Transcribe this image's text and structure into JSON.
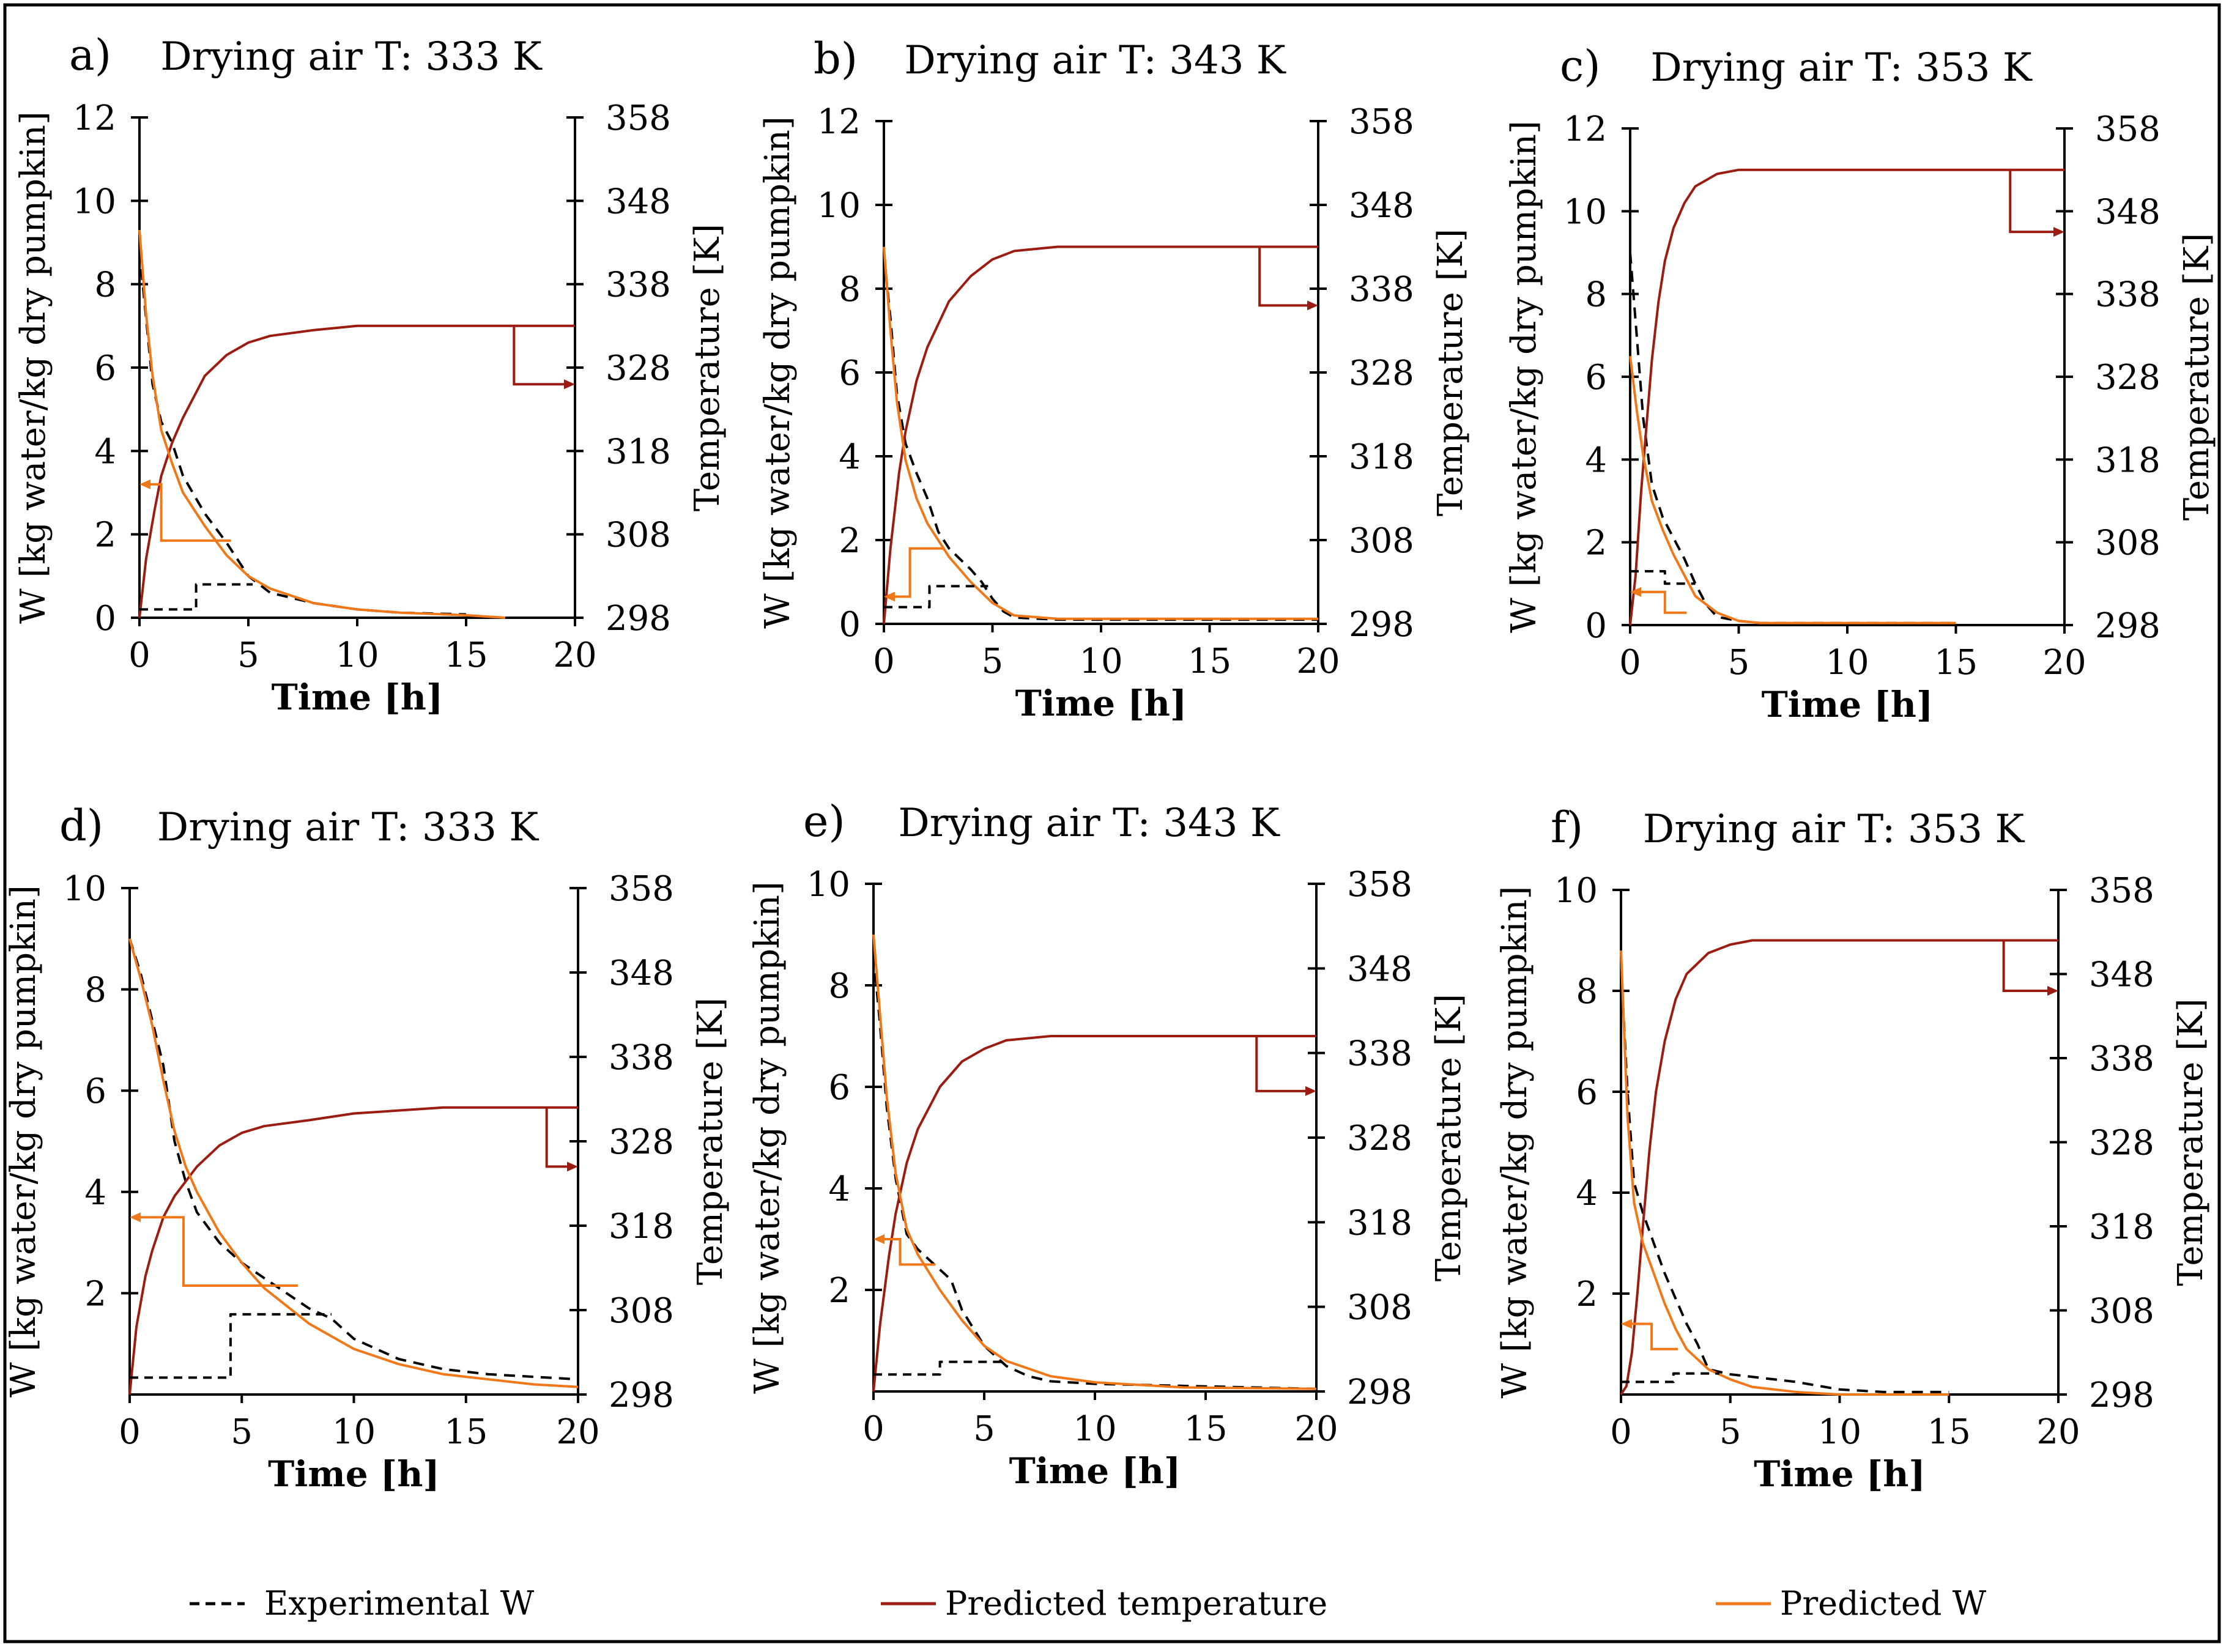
{
  "colors": {
    "experimental": "#000000",
    "pred_temperature": "#9b1c10",
    "pred_w": "#f07818",
    "frame": "#000000"
  },
  "legend": {
    "experimental": "Experimental W",
    "pred_temperature": "Predicted temperature",
    "pred_w": "Predicted W"
  },
  "chart_data": [
    {
      "type": "line",
      "panel": "a)",
      "title": "Drying air T: 333 K",
      "xlabel": "Time [h]",
      "ylabel": "W [kg water/kg dry pumpkin]",
      "y2label": "Temperature [K]",
      "xlim": [
        0,
        20
      ],
      "ylim": [
        0,
        12
      ],
      "y2lim": [
        298,
        358
      ],
      "xticks": [
        0,
        5,
        10,
        15,
        20
      ],
      "yticks": [
        0,
        2,
        4,
        6,
        8,
        10,
        12
      ],
      "y2ticks": [
        298,
        308,
        318,
        328,
        338,
        348,
        358
      ],
      "series": [
        {
          "name": "Experimental W",
          "axis": "left",
          "x": [
            0,
            0.3,
            0.6,
            1,
            1.5,
            2,
            3,
            4,
            5,
            6,
            8,
            10,
            12,
            15
          ],
          "y": [
            8.8,
            7.2,
            5.6,
            4.7,
            4.2,
            3.4,
            2.5,
            1.8,
            1.0,
            0.6,
            0.35,
            0.2,
            0.12,
            0.08
          ]
        },
        {
          "name": "Predicted temperature",
          "axis": "right",
          "x": [
            0,
            0.3,
            0.7,
            1,
            1.5,
            2,
            3,
            4,
            5,
            6,
            8,
            10,
            13,
            16,
            20
          ],
          "y": [
            298,
            305,
            311,
            315,
            319,
            322,
            327,
            329.5,
            331,
            331.8,
            332.5,
            333,
            333,
            333,
            333
          ]
        },
        {
          "name": "Predicted W",
          "axis": "left",
          "x": [
            0,
            0.3,
            0.6,
            1,
            1.5,
            2,
            3,
            4,
            5,
            6,
            8,
            10,
            12,
            15,
            16.8
          ],
          "y": [
            9.3,
            7.3,
            5.8,
            4.5,
            3.7,
            3.0,
            2.2,
            1.5,
            1.0,
            0.7,
            0.35,
            0.2,
            0.12,
            0.06,
            0.0
          ]
        },
        {
          "name": "Experimental step",
          "axis": "right",
          "x": [
            0,
            2.6,
            2.6,
            5.2
          ],
          "y": [
            299,
            299,
            302,
            302
          ]
        }
      ],
      "markers": {
        "temp_x": 17.2,
        "temp_top": 333,
        "temp_bottom": 326,
        "temp_arrow_end": 20,
        "w_x": 1.0,
        "w_top": 3.2,
        "w_bottom": 1.85,
        "w_line_end": 4.2,
        "w_arrow_end": 0.0
      }
    },
    {
      "type": "line",
      "panel": "b)",
      "title": "Drying air T: 343 K",
      "xlabel": "Time [h]",
      "ylabel": "W [kg water/kg dry pumpkin]",
      "y2label": "Temperature [K]",
      "xlim": [
        0,
        20
      ],
      "ylim": [
        0,
        12
      ],
      "y2lim": [
        298,
        358
      ],
      "xticks": [
        0,
        5,
        10,
        15,
        20
      ],
      "yticks": [
        0,
        2,
        4,
        6,
        8,
        10,
        12
      ],
      "y2ticks": [
        298,
        308,
        318,
        328,
        338,
        348,
        358
      ],
      "series": [
        {
          "name": "Experimental W",
          "axis": "left",
          "x": [
            0,
            0.3,
            0.6,
            1,
            1.5,
            2,
            2.5,
            3,
            4,
            4.5,
            5,
            5.5,
            6,
            8,
            10,
            20
          ],
          "y": [
            8.8,
            7.3,
            5.5,
            4.3,
            3.6,
            3.0,
            2.2,
            1.8,
            1.3,
            1.0,
            0.6,
            0.3,
            0.15,
            0.1,
            0.1,
            0.1
          ]
        },
        {
          "name": "Predicted temperature",
          "axis": "right",
          "x": [
            0,
            0.3,
            0.7,
            1,
            1.5,
            2,
            3,
            4,
            5,
            6,
            8,
            10,
            20
          ],
          "y": [
            298,
            307,
            316,
            321,
            327,
            331,
            336.5,
            339.5,
            341.5,
            342.5,
            343,
            343,
            343
          ]
        },
        {
          "name": "Predicted W",
          "axis": "left",
          "x": [
            0,
            0.3,
            0.6,
            1,
            1.5,
            2,
            3,
            4,
            5,
            6,
            8,
            10,
            15,
            20
          ],
          "y": [
            9.0,
            7.0,
            5.3,
            3.9,
            3.0,
            2.4,
            1.6,
            1.0,
            0.5,
            0.2,
            0.12,
            0.12,
            0.12,
            0.12
          ]
        },
        {
          "name": "Experimental step",
          "axis": "right",
          "x": [
            0,
            2.1,
            2.1,
            4.8
          ],
          "y": [
            300,
            300,
            302.5,
            302.5
          ]
        }
      ],
      "markers": {
        "temp_x": 17.3,
        "temp_top": 343,
        "temp_bottom": 336,
        "temp_arrow_end": 20,
        "w_x": 1.2,
        "w_top": 0.65,
        "w_bottom": 1.8,
        "w_line_end": 2.8,
        "w_arrow_end": 0.0
      }
    },
    {
      "type": "line",
      "panel": "c)",
      "title": "Drying air T: 353 K",
      "xlabel": "Time [h]",
      "ylabel": "W [kg water/kg dry pumpkin]",
      "y2label": "Temperature [K]",
      "xlim": [
        0,
        20
      ],
      "ylim": [
        0,
        12
      ],
      "y2lim": [
        298,
        358
      ],
      "xticks": [
        0,
        5,
        10,
        15,
        20
      ],
      "yticks": [
        0,
        2,
        4,
        6,
        8,
        10,
        12
      ],
      "y2ticks": [
        298,
        308,
        318,
        328,
        338,
        348,
        358
      ],
      "series": [
        {
          "name": "Experimental W",
          "axis": "left",
          "x": [
            0,
            0.3,
            0.6,
            1,
            1.5,
            2,
            2.5,
            3,
            3.5,
            4,
            5,
            6,
            10,
            15
          ],
          "y": [
            9.0,
            7.0,
            5.0,
            3.4,
            2.6,
            2.1,
            1.6,
            1.0,
            0.5,
            0.2,
            0.1,
            0.05,
            0.05,
            0.05
          ]
        },
        {
          "name": "Predicted temperature",
          "axis": "right",
          "x": [
            0,
            0.25,
            0.5,
            0.75,
            1,
            1.3,
            1.6,
            2,
            2.5,
            3,
            4,
            5,
            20
          ],
          "y": [
            298,
            304,
            314,
            322,
            330,
            337,
            342,
            346,
            349,
            351,
            352.5,
            353,
            353
          ]
        },
        {
          "name": "Predicted W",
          "axis": "left",
          "x": [
            0,
            0.3,
            0.6,
            1,
            1.5,
            2,
            2.5,
            3,
            4,
            5,
            6,
            10,
            15
          ],
          "y": [
            6.5,
            5.2,
            4.1,
            3.0,
            2.3,
            1.7,
            1.2,
            0.7,
            0.3,
            0.1,
            0.05,
            0.05,
            0.05
          ]
        },
        {
          "name": "Experimental step",
          "axis": "right",
          "x": [
            0,
            1.6,
            1.6,
            3.0
          ],
          "y": [
            304.5,
            304.5,
            303,
            303
          ]
        }
      ],
      "markers": {
        "temp_x": 17.5,
        "temp_top": 353,
        "temp_bottom": 345.5,
        "temp_arrow_end": 20,
        "w_x": 1.6,
        "w_top": 0.8,
        "w_bottom": 0.3,
        "w_line_end": 2.6,
        "w_arrow_end": 0.0
      }
    },
    {
      "type": "line",
      "panel": "d)",
      "title": "Drying air T: 333 K",
      "xlabel": "Time [h]",
      "ylabel": "W [kg water/kg dry pumpkin]",
      "y2label": "Temperature [K]",
      "xlim": [
        0,
        20
      ],
      "ylim": [
        0,
        10
      ],
      "y2lim": [
        298,
        358
      ],
      "xticks": [
        0,
        5,
        10,
        15,
        20
      ],
      "yticks": [
        2,
        4,
        6,
        8,
        10
      ],
      "y2ticks": [
        298,
        308,
        318,
        328,
        338,
        348,
        358
      ],
      "series": [
        {
          "name": "Experimental W",
          "axis": "left",
          "x": [
            0,
            0.5,
            1,
            1.5,
            2,
            2.5,
            3,
            4,
            5,
            6,
            7,
            8,
            9,
            10,
            12,
            14,
            16,
            20
          ],
          "y": [
            9.0,
            8.3,
            7.4,
            6.5,
            5.0,
            4.2,
            3.6,
            3.0,
            2.6,
            2.3,
            2.0,
            1.7,
            1.5,
            1.1,
            0.7,
            0.5,
            0.4,
            0.3
          ]
        },
        {
          "name": "Predicted temperature",
          "axis": "right",
          "x": [
            0,
            0.3,
            0.7,
            1,
            1.5,
            2,
            3,
            4,
            5,
            6,
            8,
            10,
            14,
            18,
            20
          ],
          "y": [
            298,
            306,
            312,
            315,
            319,
            321.5,
            325,
            327.5,
            329,
            329.8,
            330.5,
            331.3,
            332,
            332,
            332
          ]
        },
        {
          "name": "Predicted W",
          "axis": "left",
          "x": [
            0,
            0.5,
            1,
            1.5,
            2,
            2.5,
            3,
            4,
            5,
            6,
            8,
            10,
            12,
            14,
            16,
            18,
            20
          ],
          "y": [
            9.0,
            8.2,
            7.3,
            6.2,
            5.2,
            4.5,
            4.0,
            3.2,
            2.6,
            2.1,
            1.4,
            0.9,
            0.6,
            0.4,
            0.3,
            0.2,
            0.15
          ]
        },
        {
          "name": "Experimental step",
          "axis": "right",
          "x": [
            0,
            4.5,
            4.5,
            9.0
          ],
          "y": [
            300,
            300,
            307.5,
            307.5
          ]
        }
      ],
      "markers": {
        "temp_x": 18.6,
        "temp_top": 332,
        "temp_bottom": 325,
        "temp_arrow_end": 20,
        "w_x": 2.4,
        "w_top": 3.5,
        "w_bottom": 2.15,
        "w_line_end": 7.5,
        "w_arrow_end": 0.0
      }
    },
    {
      "type": "line",
      "panel": "e)",
      "title": "Drying air T: 343 K",
      "xlabel": "Time [h]",
      "ylabel": "W [kg water/kg dry pumpkin]",
      "y2label": "Temperature [K]",
      "xlim": [
        0,
        20
      ],
      "ylim": [
        0,
        10
      ],
      "y2lim": [
        298,
        358
      ],
      "xticks": [
        0,
        5,
        10,
        15,
        20
      ],
      "yticks": [
        2,
        4,
        6,
        8,
        10
      ],
      "y2ticks": [
        298,
        308,
        318,
        328,
        338,
        348,
        358
      ],
      "series": [
        {
          "name": "Experimental W",
          "axis": "left",
          "x": [
            0,
            0.3,
            0.6,
            1,
            1.5,
            2,
            2.5,
            3,
            3.5,
            4,
            5,
            6,
            7,
            8,
            10,
            15,
            20
          ],
          "y": [
            8.6,
            7.2,
            5.6,
            4.2,
            3.1,
            2.8,
            2.6,
            2.4,
            2.2,
            1.6,
            0.9,
            0.5,
            0.3,
            0.2,
            0.15,
            0.1,
            0.05
          ]
        },
        {
          "name": "Predicted temperature",
          "axis": "right",
          "x": [
            0,
            0.3,
            0.7,
            1,
            1.5,
            2,
            3,
            4,
            5,
            6,
            8,
            10,
            20
          ],
          "y": [
            298,
            306,
            314,
            319,
            325,
            329,
            334,
            337,
            338.5,
            339.5,
            340,
            340,
            340
          ]
        },
        {
          "name": "Predicted W",
          "axis": "left",
          "x": [
            0,
            0.3,
            0.6,
            1,
            1.5,
            2,
            3,
            4,
            5,
            6,
            8,
            10,
            14,
            20
          ],
          "y": [
            9.0,
            7.4,
            5.8,
            4.3,
            3.2,
            2.7,
            2.0,
            1.4,
            0.9,
            0.6,
            0.3,
            0.18,
            0.08,
            0.05
          ]
        },
        {
          "name": "Experimental step",
          "axis": "right",
          "x": [
            0,
            3.0,
            3.0,
            6.0
          ],
          "y": [
            300,
            300,
            301.5,
            301.5
          ]
        }
      ],
      "markers": {
        "temp_x": 17.3,
        "temp_top": 340,
        "temp_bottom": 333.5,
        "temp_arrow_end": 20,
        "w_x": 1.2,
        "w_top": 3.0,
        "w_bottom": 2.5,
        "w_line_end": 2.8,
        "w_arrow_end": 0.0
      }
    },
    {
      "type": "line",
      "panel": "f)",
      "title": "Drying air T: 353 K",
      "xlabel": "Time [h]",
      "ylabel": "W [kg water/kg dry pumpkin]",
      "y2label": "Temperature [K]",
      "xlim": [
        0,
        20
      ],
      "ylim": [
        0,
        10
      ],
      "y2lim": [
        298,
        358
      ],
      "xticks": [
        0,
        5,
        10,
        15,
        20
      ],
      "yticks": [
        2,
        4,
        6,
        8,
        10
      ],
      "y2ticks": [
        298,
        308,
        318,
        328,
        338,
        348,
        358
      ],
      "series": [
        {
          "name": "Experimental W",
          "axis": "left",
          "x": [
            0,
            0.3,
            0.6,
            1,
            1.5,
            2,
            2.5,
            3,
            3.5,
            4,
            5,
            6,
            8,
            10,
            12,
            15
          ],
          "y": [
            8.5,
            6.0,
            4.2,
            3.6,
            3.0,
            2.4,
            1.9,
            1.4,
            1.0,
            0.5,
            0.4,
            0.35,
            0.25,
            0.1,
            0.05,
            0.05
          ]
        },
        {
          "name": "Predicted temperature",
          "axis": "right",
          "x": [
            0,
            0.25,
            0.5,
            0.75,
            1,
            1.3,
            1.6,
            2,
            2.5,
            3,
            4,
            5,
            6,
            20
          ],
          "y": [
            298,
            299,
            303,
            310,
            318,
            327,
            334,
            340,
            345,
            348,
            350.5,
            351.5,
            352,
            352
          ]
        },
        {
          "name": "Predicted W",
          "axis": "left",
          "x": [
            0,
            0.3,
            0.6,
            1,
            1.5,
            2,
            2.5,
            3,
            4,
            5,
            6,
            8,
            10,
            15
          ],
          "y": [
            8.8,
            5.5,
            3.8,
            3.0,
            2.4,
            1.8,
            1.3,
            0.9,
            0.5,
            0.3,
            0.15,
            0.05,
            0.0,
            0.0
          ]
        },
        {
          "name": "Experimental step",
          "axis": "right",
          "x": [
            0,
            2.4,
            2.4,
            4.5
          ],
          "y": [
            299.5,
            299.5,
            300.5,
            300.5
          ]
        }
      ],
      "markers": {
        "temp_x": 17.5,
        "temp_top": 352,
        "temp_bottom": 346,
        "temp_arrow_end": 20,
        "w_x": 1.4,
        "w_top": 1.4,
        "w_bottom": 0.9,
        "w_line_end": 2.6,
        "w_arrow_end": 0.0
      }
    }
  ]
}
